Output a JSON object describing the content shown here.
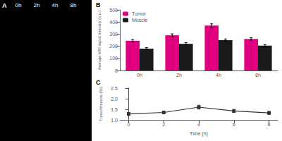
{
  "chart_data": [
    {
      "type": "image",
      "title": "A",
      "annotations": [
        "0h",
        "2h",
        "4h",
        "8h"
      ],
      "color": "#000000"
    },
    {
      "type": "bar",
      "title": "B",
      "categories": [
        "0h",
        "2h",
        "4h",
        "8h"
      ],
      "series": [
        {
          "name": "Tumor",
          "color": "#e0007f",
          "values": [
            245,
            290,
            370,
            260
          ],
          "errors": [
            10,
            12,
            15,
            10
          ]
        },
        {
          "name": "Muscle",
          "color": "#1a1a1a",
          "values": [
            180,
            220,
            250,
            205
          ],
          "errors": [
            8,
            10,
            10,
            8
          ]
        }
      ],
      "ylabel": "Average MRI signal Intensity (a.u.)",
      "ylim": [
        0,
        500
      ],
      "yticks": [
        0,
        100,
        200,
        300,
        400,
        500
      ],
      "legend": "upper left",
      "grid": false
    },
    {
      "type": "line",
      "title": "C",
      "x": [
        0,
        2,
        4,
        6,
        8
      ],
      "values": [
        1.28,
        1.35,
        1.6,
        1.42,
        1.33
      ],
      "errors": [
        0.07,
        0.06,
        0.09,
        0.07,
        0.07
      ],
      "xlabel": "Time (h)",
      "ylabel": "Tumor/muscle (%)",
      "xlim": [
        -0.5,
        8.5
      ],
      "xticks": [
        0,
        2,
        4,
        6,
        8
      ],
      "ylim": [
        1.0,
        2.5
      ],
      "yticks": [
        {
          "value": 1.0,
          "label": "1.0"
        },
        {
          "value": 1.5,
          "label": "1.5"
        },
        {
          "value": 2.0,
          "label": "2.0"
        },
        {
          "value": 2.5,
          "label": "2.5"
        }
      ],
      "color": "#333333",
      "marker": "square",
      "grid": false
    }
  ]
}
